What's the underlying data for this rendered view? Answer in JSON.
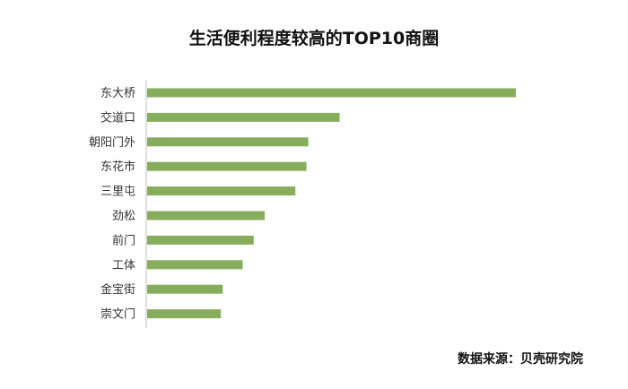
{
  "chart_data": {
    "type": "bar",
    "orientation": "horizontal",
    "title": "生活便利程度较高的TOP10商圈",
    "categories": [
      "东大桥",
      "交道口",
      "朝阳门外",
      "东花市",
      "三里屯",
      "劲松",
      "前门",
      "工体",
      "金宝街",
      "崇文门"
    ],
    "values": [
      100,
      52.2,
      43.7,
      43.2,
      40.2,
      31.9,
      28.9,
      25.9,
      20.5,
      20.0
    ],
    "xlim": [
      0,
      100
    ],
    "grid": false,
    "legend": "none",
    "bar_color": "#86ad5c"
  },
  "source": "数据来源：贝壳研究院"
}
